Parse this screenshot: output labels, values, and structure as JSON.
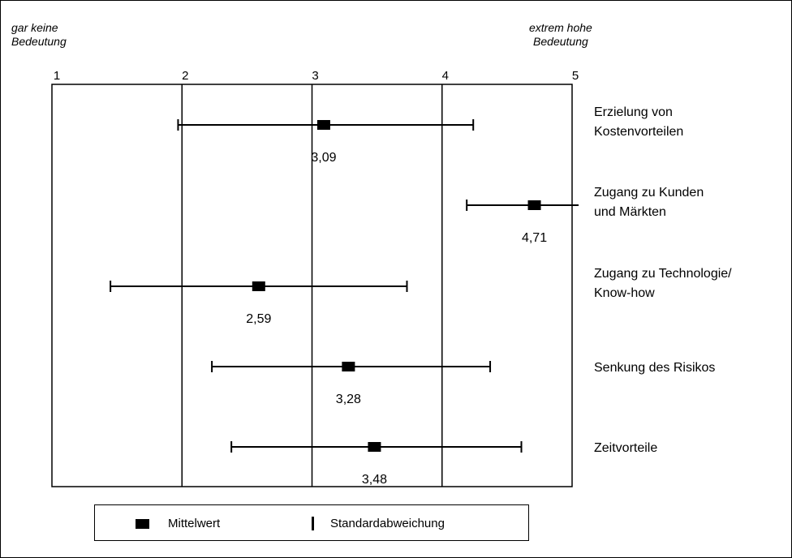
{
  "scale_note_left": [
    "gar keine",
    "Bedeutung"
  ],
  "scale_note_right": [
    "extrem hohe",
    "Bedeutung"
  ],
  "chart_data": {
    "type": "errorbar",
    "x_ticks": [
      "1",
      "2",
      "3",
      "4",
      "5"
    ],
    "xlim": [
      1,
      5
    ],
    "grid": "vertical",
    "items": [
      {
        "label": [
          "Erzielung von",
          "Kostenvorteilen"
        ],
        "mean": 3.09,
        "mean_label": "3,09",
        "low": 1.97,
        "high": 4.24
      },
      {
        "label": [
          "Zugang zu Kunden",
          "und Märkten"
        ],
        "mean": 4.71,
        "mean_label": "4,71",
        "low": 4.19,
        "high": 5.05
      },
      {
        "label": [
          "Zugang zu Technologie/",
          "Know-how"
        ],
        "mean": 2.59,
        "mean_label": "2,59",
        "low": 1.45,
        "high": 3.73
      },
      {
        "label": [
          "Senkung des Risikos"
        ],
        "mean": 3.28,
        "mean_label": "3,28",
        "low": 2.23,
        "high": 4.37
      },
      {
        "label": [
          "Zeitvorteile"
        ],
        "mean": 3.48,
        "mean_label": "3,48",
        "low": 2.38,
        "high": 4.61
      }
    ]
  },
  "legend": {
    "mean_label": "Mittelwert",
    "std_label": "Standardabweichung"
  }
}
